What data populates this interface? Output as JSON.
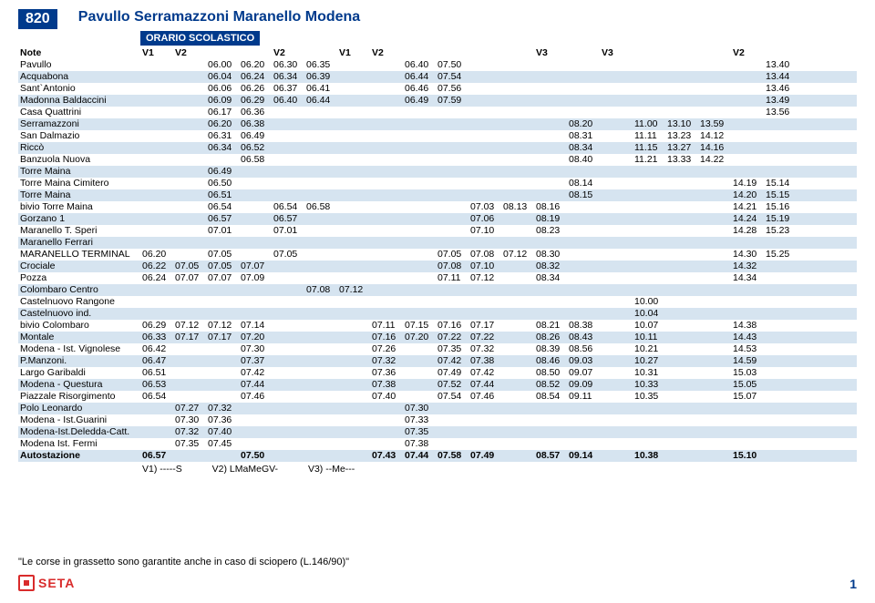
{
  "header": {
    "route_number": "820",
    "route_title": "Pavullo Serramazzoni Maranello Modena",
    "subtitle": "ORARIO SCOLASTICO"
  },
  "columns": [
    "Note",
    "V1",
    "V2",
    "",
    "",
    "V2",
    "",
    "V1",
    "V2",
    "",
    "",
    "",
    "",
    "V3",
    "",
    "V3",
    "",
    "",
    "",
    "V2"
  ],
  "notes_line": {
    "v1": "V1)  -----S",
    "v2": "V2)  LMaMeGV-",
    "v3": "V3)  --Me---"
  },
  "footer": "\"Le corse in grassetto sono garantite anche in caso di sciopero (L.146/90)\"",
  "logo_text": "SETA",
  "page_number": "1",
  "rows": [
    {
      "s": 0,
      "b": 0,
      "stop": "Pavullo",
      "t": [
        "",
        "",
        "06.00",
        "06.20",
        "06.30",
        "06.35",
        "",
        "",
        "06.40",
        "07.50",
        "",
        "",
        "",
        "",
        "",
        "",
        "",
        "",
        "",
        "13.40"
      ]
    },
    {
      "s": 1,
      "b": 0,
      "stop": "Acquabona",
      "t": [
        "",
        "",
        "06.04",
        "06.24",
        "06.34",
        "06.39",
        "",
        "",
        "06.44",
        "07.54",
        "",
        "",
        "",
        "",
        "",
        "",
        "",
        "",
        "",
        "13.44"
      ]
    },
    {
      "s": 0,
      "b": 0,
      "stop": "Sant`Antonio",
      "t": [
        "",
        "",
        "06.06",
        "06.26",
        "06.37",
        "06.41",
        "",
        "",
        "06.46",
        "07.56",
        "",
        "",
        "",
        "",
        "",
        "",
        "",
        "",
        "",
        "13.46"
      ]
    },
    {
      "s": 1,
      "b": 0,
      "stop": "Madonna Baldaccini",
      "t": [
        "",
        "",
        "06.09",
        "06.29",
        "06.40",
        "06.44",
        "",
        "",
        "06.49",
        "07.59",
        "",
        "",
        "",
        "",
        "",
        "",
        "",
        "",
        "",
        "13.49"
      ]
    },
    {
      "s": 0,
      "b": 0,
      "stop": "Casa Quattrini",
      "t": [
        "",
        "",
        "06.17",
        "06.36",
        "",
        "",
        "",
        "",
        "",
        "",
        "",
        "",
        "",
        "",
        "",
        "",
        "",
        "",
        "",
        "13.56"
      ]
    },
    {
      "s": 1,
      "b": 0,
      "stop": "Serramazzoni",
      "t": [
        "",
        "",
        "06.20",
        "06.38",
        "",
        "",
        "",
        "",
        "",
        "",
        "",
        "",
        "",
        "08.20",
        "",
        "11.00",
        "13.10",
        "13.59",
        "",
        ""
      ]
    },
    {
      "s": 0,
      "b": 0,
      "stop": "San Dalmazio",
      "t": [
        "",
        "",
        "06.31",
        "06.49",
        "",
        "",
        "",
        "",
        "",
        "",
        "",
        "",
        "",
        "08.31",
        "",
        "11.11",
        "13.23",
        "14.12",
        "",
        ""
      ]
    },
    {
      "s": 1,
      "b": 0,
      "stop": "Riccò",
      "t": [
        "",
        "",
        "06.34",
        "06.52",
        "",
        "",
        "",
        "",
        "",
        "",
        "",
        "",
        "",
        "08.34",
        "",
        "11.15",
        "13.27",
        "14.16",
        "",
        ""
      ]
    },
    {
      "s": 0,
      "b": 0,
      "stop": "Banzuola Nuova",
      "t": [
        "",
        "",
        "",
        "06.58",
        "",
        "",
        "",
        "",
        "",
        "",
        "",
        "",
        "",
        "08.40",
        "",
        "11.21",
        "13.33",
        "14.22",
        "",
        ""
      ]
    },
    {
      "s": 1,
      "b": 0,
      "stop": "Torre Maina",
      "t": [
        "",
        "",
        "06.49",
        "",
        "",
        "",
        "",
        "",
        "",
        "",
        "",
        "",
        "",
        "",
        "",
        "",
        "",
        "",
        "",
        ""
      ]
    },
    {
      "s": 0,
      "b": 0,
      "stop": "Torre Maina Cimitero",
      "t": [
        "",
        "",
        "06.50",
        "",
        "",
        "",
        "",
        "",
        "",
        "",
        "",
        "",
        "",
        "08.14",
        "",
        "",
        "",
        "",
        "14.19",
        "15.14"
      ]
    },
    {
      "s": 1,
      "b": 0,
      "stop": "Torre Maina",
      "t": [
        "",
        "",
        "06.51",
        "",
        "",
        "",
        "",
        "",
        "",
        "",
        "",
        "",
        "",
        "08.15",
        "",
        "",
        "",
        "",
        "14.20",
        "15.15"
      ]
    },
    {
      "s": 0,
      "b": 0,
      "stop": "bivio Torre Maina",
      "t": [
        "",
        "",
        "06.54",
        "",
        "06.54",
        "06.58",
        "",
        "",
        "",
        "",
        "07.03",
        "08.13",
        "08.16",
        "",
        "",
        "",
        "",
        "",
        "14.21",
        "15.16"
      ]
    },
    {
      "s": 1,
      "b": 0,
      "stop": "Gorzano 1",
      "t": [
        "",
        "",
        "06.57",
        "",
        "06.57",
        "",
        "",
        "",
        "",
        "",
        "07.06",
        "",
        "08.19",
        "",
        "",
        "",
        "",
        "",
        "14.24",
        "15.19"
      ]
    },
    {
      "s": 0,
      "b": 0,
      "stop": "Maranello T. Speri",
      "t": [
        "",
        "",
        "07.01",
        "",
        "07.01",
        "",
        "",
        "",
        "",
        "",
        "07.10",
        "",
        "08.23",
        "",
        "",
        "",
        "",
        "",
        "14.28",
        "15.23"
      ]
    },
    {
      "s": 1,
      "b": 0,
      "stop": "Maranello Ferrari",
      "t": [
        "",
        "",
        "",
        "",
        "",
        "",
        "",
        "",
        "",
        "",
        "",
        "",
        "",
        "",
        "",
        "",
        "",
        "",
        "",
        ""
      ]
    },
    {
      "s": 0,
      "b": 0,
      "stop": "MARANELLO TERMINAL",
      "t": [
        "06.20",
        "",
        "07.05",
        "",
        "07.05",
        "",
        "",
        "",
        "",
        "07.05",
        "07.08",
        "07.12",
        "08.30",
        "",
        "",
        "",
        "",
        "",
        "14.30",
        "15.25"
      ]
    },
    {
      "s": 1,
      "b": 0,
      "stop": "Crociale",
      "t": [
        "06.22",
        "07.05",
        "07.05",
        "07.07",
        "",
        "",
        "",
        "",
        "",
        "07.08",
        "07.10",
        "",
        "08.32",
        "",
        "",
        "",
        "",
        "",
        "14.32",
        ""
      ]
    },
    {
      "s": 0,
      "b": 0,
      "stop": "Pozza",
      "t": [
        "06.24",
        "07.07",
        "07.07",
        "07.09",
        "",
        "",
        "",
        "",
        "",
        "07.11",
        "07.12",
        "",
        "08.34",
        "",
        "",
        "",
        "",
        "",
        "14.34",
        ""
      ]
    },
    {
      "s": 1,
      "b": 0,
      "stop": "Colombaro Centro",
      "t": [
        "",
        "",
        "",
        "",
        "",
        "07.08",
        "07.12",
        "",
        "",
        "",
        "",
        "",
        "",
        "",
        "",
        "",
        "",
        "",
        "",
        ""
      ]
    },
    {
      "s": 0,
      "b": 0,
      "stop": "Castelnuovo Rangone",
      "t": [
        "",
        "",
        "",
        "",
        "",
        "",
        "",
        "",
        "",
        "",
        "",
        "",
        "",
        "",
        "",
        "10.00",
        "",
        "",
        "",
        ""
      ]
    },
    {
      "s": 1,
      "b": 0,
      "stop": "Castelnuovo ind.",
      "t": [
        "",
        "",
        "",
        "",
        "",
        "",
        "",
        "",
        "",
        "",
        "",
        "",
        "",
        "",
        "",
        "10.04",
        "",
        "",
        "",
        ""
      ]
    },
    {
      "s": 0,
      "b": 0,
      "stop": "bivio Colombaro",
      "t": [
        "06.29",
        "07.12",
        "07.12",
        "07.14",
        "",
        "",
        "",
        "07.11",
        "07.15",
        "07.16",
        "07.17",
        "",
        "08.21",
        "08.38",
        "",
        "10.07",
        "",
        "",
        "14.38",
        ""
      ]
    },
    {
      "s": 1,
      "b": 0,
      "stop": "Montale",
      "t": [
        "06.33",
        "07.17",
        "07.17",
        "07.20",
        "",
        "",
        "",
        "07.16",
        "07.20",
        "07.22",
        "07.22",
        "",
        "08.26",
        "08.43",
        "",
        "10.11",
        "",
        "",
        "14.43",
        ""
      ]
    },
    {
      "s": 0,
      "b": 0,
      "stop": "Modena - Ist. Vignolese",
      "t": [
        "06.42",
        "",
        "",
        "07.30",
        "",
        "",
        "",
        "07.26",
        "",
        "07.35",
        "07.32",
        "",
        "08.39",
        "08.56",
        "",
        "10.21",
        "",
        "",
        "14.53",
        ""
      ]
    },
    {
      "s": 1,
      "b": 0,
      "stop": "P.Manzoni.",
      "t": [
        "06.47",
        "",
        "",
        "07.37",
        "",
        "",
        "",
        "07.32",
        "",
        "07.42",
        "07.38",
        "",
        "08.46",
        "09.03",
        "",
        "10.27",
        "",
        "",
        "14.59",
        ""
      ]
    },
    {
      "s": 0,
      "b": 0,
      "stop": "Largo Garibaldi",
      "t": [
        "06.51",
        "",
        "",
        "07.42",
        "",
        "",
        "",
        "07.36",
        "",
        "07.49",
        "07.42",
        "",
        "08.50",
        "09.07",
        "",
        "10.31",
        "",
        "",
        "15.03",
        ""
      ]
    },
    {
      "s": 1,
      "b": 0,
      "stop": "Modena - Questura",
      "t": [
        "06.53",
        "",
        "",
        "07.44",
        "",
        "",
        "",
        "07.38",
        "",
        "07.52",
        "07.44",
        "",
        "08.52",
        "09.09",
        "",
        "10.33",
        "",
        "",
        "15.05",
        ""
      ]
    },
    {
      "s": 0,
      "b": 0,
      "stop": "Piazzale Risorgimento",
      "t": [
        "06.54",
        "",
        "",
        "07.46",
        "",
        "",
        "",
        "07.40",
        "",
        "07.54",
        "07.46",
        "",
        "08.54",
        "09.11",
        "",
        "10.35",
        "",
        "",
        "15.07",
        ""
      ]
    },
    {
      "s": 1,
      "b": 0,
      "stop": "Polo Leonardo",
      "t": [
        "",
        "07.27",
        "07.32",
        "",
        "",
        "",
        "",
        "",
        "07.30",
        "",
        "",
        "",
        "",
        "",
        "",
        "",
        "",
        "",
        "",
        ""
      ]
    },
    {
      "s": 0,
      "b": 0,
      "stop": "Modena - Ist.Guarini",
      "t": [
        "",
        "07.30",
        "07.36",
        "",
        "",
        "",
        "",
        "",
        "07.33",
        "",
        "",
        "",
        "",
        "",
        "",
        "",
        "",
        "",
        "",
        ""
      ]
    },
    {
      "s": 1,
      "b": 0,
      "stop": "Modena-Ist.Deledda-Catt.",
      "t": [
        "",
        "07.32",
        "07.40",
        "",
        "",
        "",
        "",
        "",
        "07.35",
        "",
        "",
        "",
        "",
        "",
        "",
        "",
        "",
        "",
        "",
        ""
      ]
    },
    {
      "s": 0,
      "b": 0,
      "stop": "Modena Ist. Fermi",
      "t": [
        "",
        "07.35",
        "07.45",
        "",
        "",
        "",
        "",
        "",
        "07.38",
        "",
        "",
        "",
        "",
        "",
        "",
        "",
        "",
        "",
        "",
        ""
      ]
    },
    {
      "s": 1,
      "b": 1,
      "stop": "Autostazione",
      "t": [
        "06.57",
        "",
        "",
        "07.50",
        "",
        "",
        "",
        "07.43",
        "07.44",
        "07.58",
        "07.49",
        "",
        "08.57",
        "09.14",
        "",
        "10.38",
        "",
        "",
        "15.10",
        ""
      ]
    }
  ]
}
